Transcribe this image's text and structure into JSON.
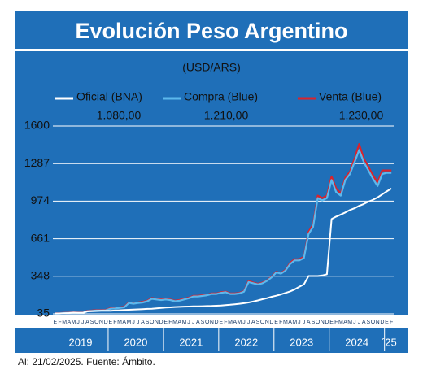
{
  "chart_data": {
    "type": "line",
    "title": "Evolución Peso Argentino",
    "subtitle": "(USD/ARS)",
    "footer": "Al: 21/02/2025. Fuente: Ámbito.",
    "categories": [
      "E",
      "F",
      "M",
      "A",
      "M",
      "J",
      "J",
      "A",
      "S",
      "O",
      "N",
      "D",
      "E",
      "F",
      "M",
      "A",
      "M",
      "J",
      "J",
      "A",
      "S",
      "O",
      "N",
      "D",
      "E",
      "F",
      "M",
      "A",
      "M",
      "J",
      "J",
      "A",
      "S",
      "O",
      "N",
      "D",
      "E",
      "F",
      "M",
      "A",
      "M",
      "J",
      "J",
      "A",
      "S",
      "O",
      "N",
      "D",
      "E",
      "F",
      "M",
      "A",
      "M",
      "J",
      "J",
      "A",
      "S",
      "O",
      "N",
      "D",
      "E",
      "F",
      "M",
      "A",
      "M",
      "J",
      "J",
      "A",
      "S",
      "O",
      "N",
      "D",
      "E",
      "F"
    ],
    "year_labels": [
      "2019",
      "2020",
      "2021",
      "2022",
      "2023",
      "2024",
      "´25"
    ],
    "ylim": [
      35,
      1600
    ],
    "yticks": [
      35,
      348,
      661,
      974,
      1287,
      1600
    ],
    "grid": true,
    "series": [
      {
        "name": "Oficial (BNA)",
        "color": "#ffffff",
        "last_label": "1.080,00",
        "values": [
          38,
          38,
          40,
          42,
          45,
          44,
          43,
          55,
          57,
          59,
          60,
          60,
          61,
          63,
          65,
          67,
          69,
          70,
          72,
          74,
          76,
          78,
          81,
          84,
          87,
          89,
          92,
          93,
          95,
          96,
          97,
          98,
          99,
          100,
          101,
          103,
          105,
          108,
          111,
          115,
          119,
          124,
          130,
          138,
          147,
          157,
          166,
          177,
          186,
          197,
          209,
          222,
          239,
          260,
          280,
          350,
          350,
          350,
          355,
          365,
          825,
          845,
          862,
          880,
          900,
          915,
          935,
          950,
          970,
          985,
          1005,
          1030,
          1055,
          1080
        ]
      },
      {
        "name": "Compra (Blue)",
        "color": "#5cb8ec",
        "last_label": "1.210,00",
        "values": [
          38,
          39,
          42,
          44,
          45,
          44,
          44,
          58,
          60,
          63,
          63,
          65,
          78,
          80,
          85,
          90,
          125,
          120,
          125,
          130,
          140,
          160,
          155,
          150,
          155,
          150,
          140,
          145,
          155,
          165,
          180,
          180,
          185,
          190,
          200,
          200,
          210,
          215,
          200,
          200,
          205,
          220,
          300,
          290,
          280,
          290,
          310,
          340,
          380,
          370,
          395,
          450,
          480,
          480,
          500,
          700,
          760,
          1000,
          980,
          1000,
          1150,
          1050,
          1020,
          1150,
          1200,
          1300,
          1400,
          1300,
          1230,
          1160,
          1100,
          1200,
          1210,
          1210
        ]
      },
      {
        "name": "Venta (Blue)",
        "color": "#d9232d",
        "last_label": "1.230,00",
        "values": [
          40,
          41,
          44,
          46,
          47,
          46,
          46,
          61,
          63,
          66,
          66,
          68,
          82,
          84,
          89,
          94,
          130,
          125,
          130,
          135,
          145,
          167,
          162,
          157,
          160,
          155,
          145,
          150,
          160,
          170,
          185,
          185,
          190,
          195,
          205,
          205,
          215,
          220,
          205,
          205,
          210,
          225,
          310,
          295,
          285,
          295,
          315,
          345,
          385,
          375,
          400,
          460,
          490,
          490,
          510,
          720,
          780,
          1020,
          1000,
          1020,
          1180,
          1080,
          1040,
          1170,
          1220,
          1330,
          1450,
          1330,
          1260,
          1190,
          1130,
          1230,
          1230,
          1230
        ]
      }
    ]
  }
}
